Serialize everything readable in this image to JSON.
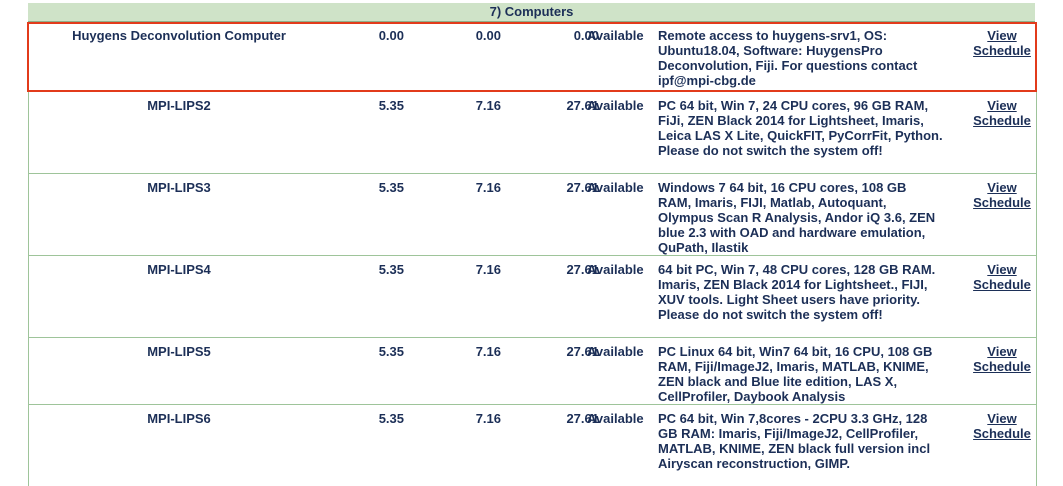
{
  "section": {
    "title": "7) Computers"
  },
  "rows": [
    {
      "name": "Huygens Deconvolution Computer",
      "v1": "0.00",
      "v2": "0.00",
      "v3": "0.00",
      "status": "Available",
      "desc": "Remote access to huygens-srv1, OS: Ubuntu18.04, Software: HuygensPro Deconvolution, Fiji. For questions contact ipf@mpi-cbg.de",
      "view": "View",
      "schedule": "Schedule",
      "highlighted": true
    },
    {
      "name": "MPI-LIPS2",
      "v1": "5.35",
      "v2": "7.16",
      "v3": "27.61",
      "status": "Available",
      "desc": "PC 64 bit, Win 7, 24 CPU cores, 96 GB RAM, FiJi, ZEN Black 2014 for Lightsheet, Imaris, Leica LAS X Lite, QuickFIT, PyCorrFit, Python. Please do not switch the system off!",
      "view": "View",
      "schedule": "Schedule"
    },
    {
      "name": "MPI-LIPS3",
      "v1": "5.35",
      "v2": "7.16",
      "v3": "27.61",
      "status": "Available",
      "desc": "Windows 7 64 bit, 16 CPU cores, 108 GB RAM, Imaris, FIJI, Matlab, Autoquant, Olympus Scan R Analysis, Andor iQ 3.6, ZEN blue 2.3 with OAD and hardware emulation, QuPath, Ilastik",
      "view": "View",
      "schedule": "Schedule"
    },
    {
      "name": "MPI-LIPS4",
      "v1": "5.35",
      "v2": "7.16",
      "v3": "27.61",
      "status": "Available",
      "desc": "64 bit PC, Win 7, 48 CPU cores, 128 GB RAM. Imaris, ZEN Black 2014 for Lightsheet., FIJI, XUV tools. Light Sheet users have priority. Please do not switch the system off!",
      "view": "View",
      "schedule": "Schedule"
    },
    {
      "name": "MPI-LIPS5",
      "v1": "5.35",
      "v2": "7.16",
      "v3": "27.61",
      "status": "Available",
      "desc": "PC Linux 64 bit, Win7 64 bit, 16 CPU, 108 GB RAM, Fiji/ImageJ2, Imaris, MATLAB, KNIME, ZEN black and Blue lite edition, LAS X, CellProfiler, Daybook Analysis",
      "view": "View",
      "schedule": "Schedule"
    },
    {
      "name": "MPI-LIPS6",
      "v1": "5.35",
      "v2": "7.16",
      "v3": "27.61",
      "status": "Available",
      "desc": "PC 64 bit, Win 7,8cores - 2CPU 3.3 GHz, 128 GB RAM: Imaris, Fiji/ImageJ2, CellProfiler, MATLAB, KNIME, ZEN black full version incl Airyscan reconstruction, GIMP.",
      "view": "View",
      "schedule": "Schedule"
    }
  ],
  "colors": {
    "text": "#1c2f57",
    "header_bg": "#cfe3c8",
    "border": "#9ec49a",
    "highlight": "#e23b1b"
  }
}
